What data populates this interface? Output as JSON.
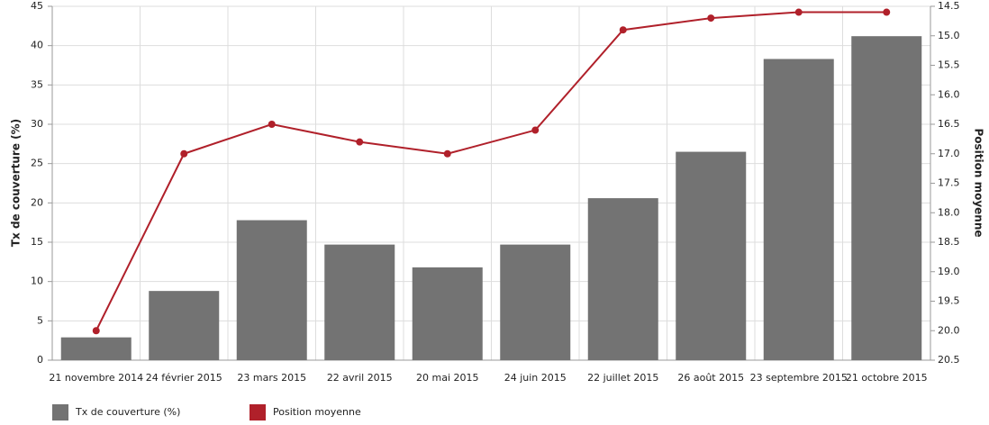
{
  "chart_data": {
    "type": "bar_line",
    "categories": [
      "21 novembre 2014",
      "24 février 2015",
      "23 mars 2015",
      "22 avril 2015",
      "20 mai 2015",
      "24 juin 2015",
      "22 juillet 2015",
      "26 août 2015",
      "23 septembre 2015",
      "21 octobre 2015"
    ],
    "series": [
      {
        "name": "Tx de couverture (%)",
        "type": "bar",
        "color": "#737373",
        "values": [
          2.9,
          8.8,
          17.8,
          14.7,
          11.8,
          14.7,
          20.6,
          26.5,
          38.3,
          41.2
        ]
      },
      {
        "name": "Position moyenne",
        "type": "line",
        "axis": "y2",
        "color": "#b0202a",
        "values": [
          20.0,
          17.0,
          16.5,
          16.8,
          17.0,
          16.6,
          14.9,
          14.7,
          14.6,
          14.6
        ]
      }
    ],
    "ylabel": "Tx de couverture (%)",
    "y2label": "Position moyenne",
    "ylim": [
      0,
      45
    ],
    "yticks": [
      0,
      5,
      10,
      15,
      20,
      25,
      30,
      35,
      40,
      45
    ],
    "y2lim": [
      20.5,
      14.5
    ],
    "y2ticks": [
      14.5,
      {
        "value": 15,
        "label": "15.0"
      },
      15.5,
      {
        "value": 16,
        "label": "16.0"
      },
      16.5,
      {
        "value": 17,
        "label": "17.0"
      },
      17.5,
      {
        "value": 18,
        "label": "18.0"
      },
      18.5,
      {
        "value": 19,
        "label": "19.0"
      },
      19.5,
      {
        "value": 20,
        "label": "20.0"
      },
      20.5
    ],
    "grid": true,
    "legend": "bottom-left"
  }
}
